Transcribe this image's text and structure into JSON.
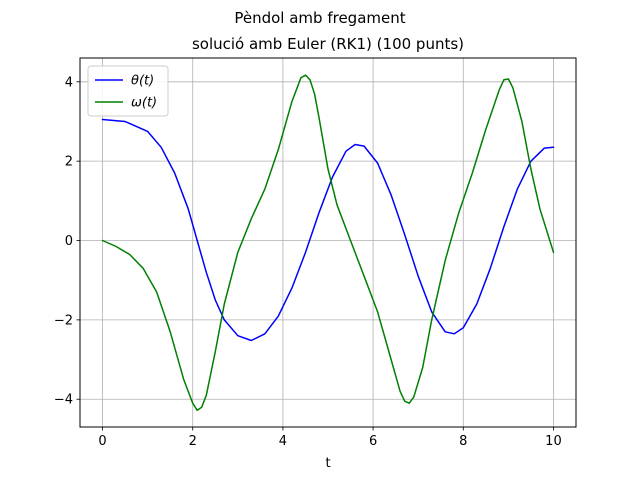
{
  "chart_data": {
    "type": "line",
    "suptitle": "Pèndol amb fregament",
    "title": "solució amb Euler (RK1) (100 punts)",
    "xlabel": "t",
    "ylabel": "",
    "xlim": [
      -0.5,
      10.5
    ],
    "ylim": [
      -4.7,
      4.6
    ],
    "xticks": [
      0,
      2,
      4,
      6,
      8,
      10
    ],
    "yticks": [
      -4,
      -2,
      0,
      2,
      4
    ],
    "grid": true,
    "legend_position": "top-left",
    "series": [
      {
        "name": "θ(t)",
        "color": "#0000ff",
        "x": [
          0,
          0.5,
          1.0,
          1.3,
          1.6,
          1.9,
          2.1,
          2.3,
          2.5,
          2.7,
          3.0,
          3.3,
          3.6,
          3.9,
          4.2,
          4.5,
          4.8,
          5.1,
          5.4,
          5.6,
          5.8,
          6.1,
          6.4,
          6.7,
          7.0,
          7.3,
          7.6,
          7.8,
          8.0,
          8.3,
          8.6,
          8.9,
          9.2,
          9.5,
          9.8,
          10.0
        ],
        "values": [
          3.05,
          3.0,
          2.75,
          2.35,
          1.7,
          0.8,
          0.0,
          -0.8,
          -1.5,
          -2.0,
          -2.4,
          -2.52,
          -2.35,
          -1.9,
          -1.2,
          -0.3,
          0.7,
          1.6,
          2.25,
          2.42,
          2.38,
          1.95,
          1.15,
          0.15,
          -0.9,
          -1.8,
          -2.3,
          -2.35,
          -2.2,
          -1.6,
          -0.7,
          0.35,
          1.3,
          2.0,
          2.33,
          2.35
        ]
      },
      {
        "name": "ω(t)",
        "color": "#008000",
        "x": [
          0,
          0.3,
          0.6,
          0.9,
          1.2,
          1.5,
          1.8,
          2.0,
          2.1,
          2.2,
          2.3,
          2.5,
          2.7,
          3.0,
          3.3,
          3.6,
          3.9,
          4.2,
          4.4,
          4.5,
          4.6,
          4.7,
          4.8,
          5.0,
          5.2,
          5.5,
          5.8,
          6.1,
          6.4,
          6.6,
          6.7,
          6.8,
          6.9,
          7.1,
          7.3,
          7.6,
          7.9,
          8.2,
          8.5,
          8.8,
          8.9,
          9.0,
          9.1,
          9.3,
          9.5,
          9.7,
          10.0
        ],
        "values": [
          0.0,
          -0.15,
          -0.35,
          -0.7,
          -1.3,
          -2.3,
          -3.5,
          -4.1,
          -4.28,
          -4.2,
          -3.9,
          -2.8,
          -1.6,
          -0.3,
          0.55,
          1.3,
          2.3,
          3.5,
          4.1,
          4.17,
          4.05,
          3.7,
          3.1,
          1.8,
          0.9,
          0.0,
          -0.9,
          -1.8,
          -3.0,
          -3.8,
          -4.05,
          -4.1,
          -3.95,
          -3.2,
          -2.0,
          -0.5,
          0.7,
          1.7,
          2.8,
          3.8,
          4.05,
          4.07,
          3.85,
          3.0,
          1.8,
          0.8,
          -0.3
        ]
      }
    ]
  }
}
